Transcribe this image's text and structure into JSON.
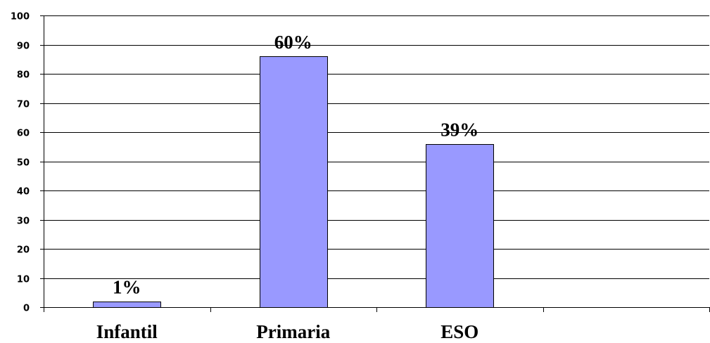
{
  "chart_data": {
    "type": "bar",
    "categories": [
      "Infantil",
      "Primaria",
      "ESO",
      ""
    ],
    "values": [
      2,
      86,
      56,
      null
    ],
    "data_labels": [
      "1%",
      "60%",
      "39%",
      ""
    ],
    "ylim": [
      0,
      100
    ],
    "yticks": [
      0,
      10,
      20,
      30,
      40,
      50,
      60,
      70,
      80,
      90,
      100
    ],
    "grid": true,
    "legend": "none",
    "bar_color": "#9999FF",
    "bar_edge_color": "#000000"
  }
}
